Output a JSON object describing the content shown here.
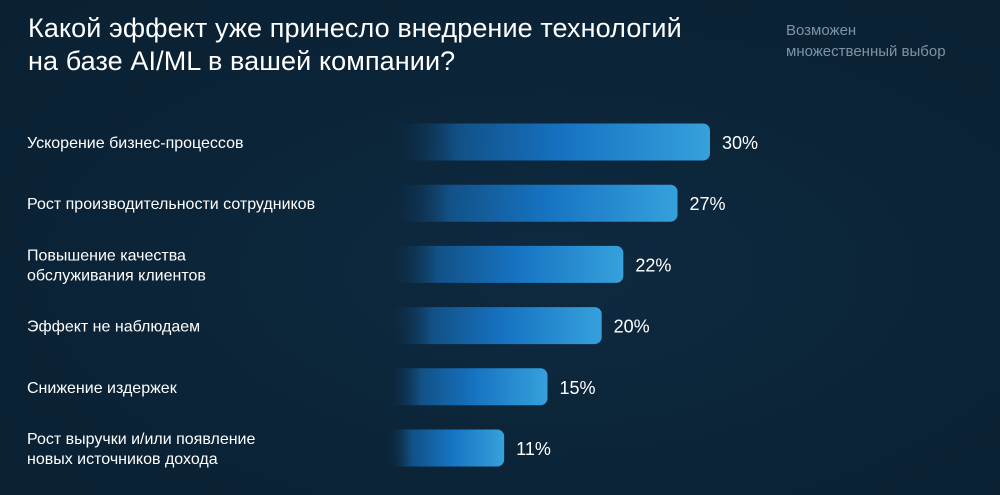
{
  "header": {
    "title_lines": [
      "Какой эффект уже принесло внедрение технологий",
      "на базе AI/ML в вашей компании?"
    ],
    "note_lines": [
      "Возможен",
      "множественный выбор"
    ]
  },
  "colors": {
    "background": "#0b2336",
    "bar_start": "#0b2336",
    "bar_mid": "#1673c2",
    "bar_end": "#36a1dc",
    "note": "#7f93a4"
  },
  "chart_data": {
    "type": "bar",
    "orientation": "horizontal",
    "title": "Какой эффект уже принесло внедрение технологий на базе AI/ML в вашей компании?",
    "xlabel": "",
    "ylabel": "",
    "xlim": [
      0,
      30
    ],
    "grid": false,
    "categories": [
      [
        "Ускорение бизнес-процессов"
      ],
      [
        "Рост производительности сотрудников"
      ],
      [
        "Повышение качества",
        "обслуживания клиентов"
      ],
      [
        "Эффект не наблюдаем"
      ],
      [
        "Снижение издержек"
      ],
      [
        "Рост выручки и/или появление",
        "новых источников дохода"
      ]
    ],
    "values": [
      30,
      27,
      22,
      20,
      15,
      11
    ],
    "value_labels": [
      "30%",
      "27%",
      "22%",
      "20%",
      "15%",
      "11%"
    ]
  }
}
